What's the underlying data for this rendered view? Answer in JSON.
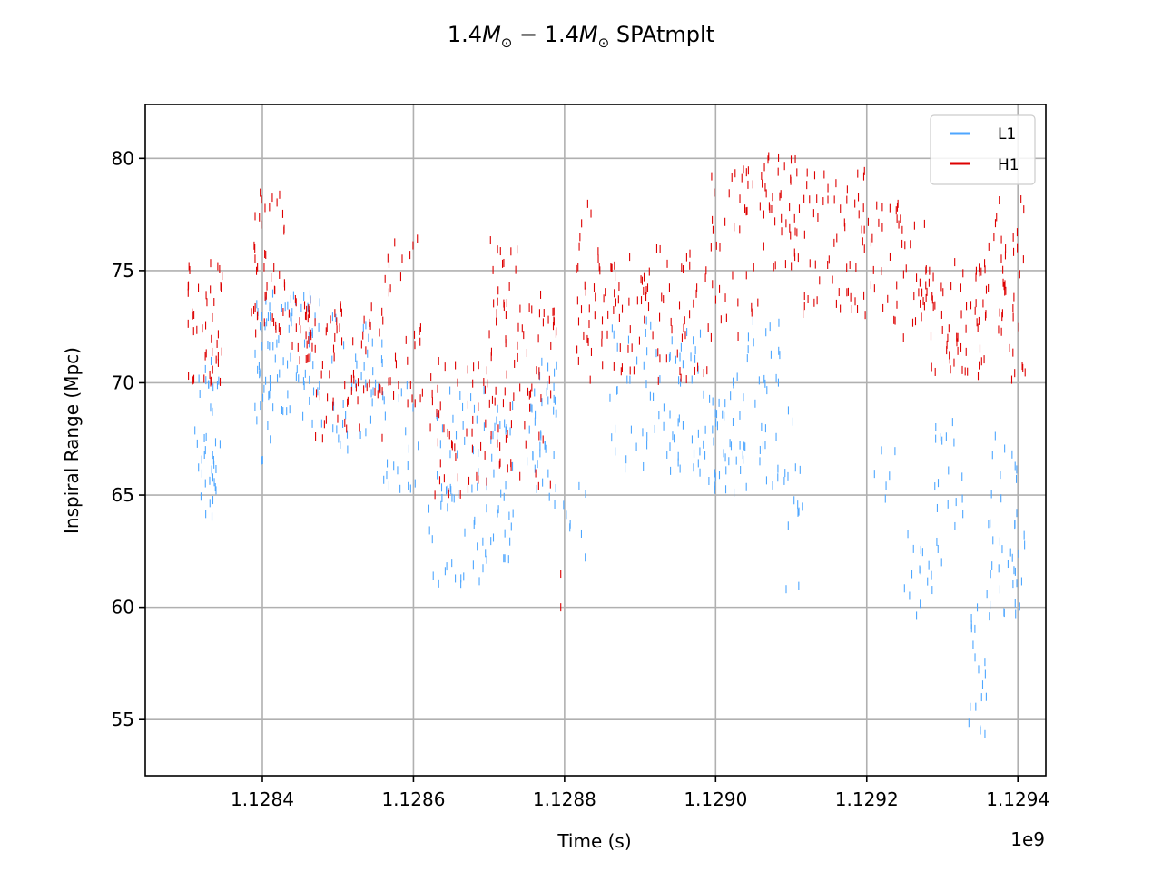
{
  "chart_data": {
    "type": "scatter",
    "title": {
      "prefix": "1.4",
      "m1_symbol": "M",
      "sub": "⊙",
      "dash": " − ",
      "mid": "1.4",
      "m2_symbol": "M",
      "suffix": " SPAtmplt"
    },
    "xlabel": "Time (s)",
    "ylabel": "Inspiral Range (Mpc)",
    "x_offset_label": "1e9",
    "x_scale": 1000000000,
    "xlim": [
      1128245000,
      1129437000
    ],
    "ylim": [
      52.5,
      82.4
    ],
    "x_ticks": [
      1128400000,
      1128600000,
      1128800000,
      1129000000,
      1129200000,
      1129400000
    ],
    "x_tick_labels": [
      "1.1284",
      "1.1286",
      "1.1288",
      "1.1290",
      "1.1292",
      "1.1294"
    ],
    "y_ticks": [
      55,
      60,
      65,
      70,
      75,
      80
    ],
    "y_tick_labels": [
      "55",
      "60",
      "65",
      "70",
      "75",
      "80"
    ],
    "grid": true,
    "legend_position": "top-right",
    "marker": "vertical tick",
    "series": [
      {
        "name": "L1",
        "color": "#4da6ff",
        "clusters": [
          {
            "x": [
              1128310000,
              1128345000
            ],
            "y": [
              64,
              71
            ],
            "n": 40
          },
          {
            "x": [
              1128390000,
              1128420000
            ],
            "y": [
              66.5,
              74
            ],
            "n": 40
          },
          {
            "x": [
              1128420000,
              1128480000
            ],
            "y": [
              68,
              74
            ],
            "n": 50
          },
          {
            "x": [
              1128490000,
              1128560000
            ],
            "y": [
              67,
              73
            ],
            "n": 40
          },
          {
            "x": [
              1128560000,
              1128610000
            ],
            "y": [
              65,
              70
            ],
            "n": 20
          },
          {
            "x": [
              1128620000,
              1128700000
            ],
            "y": [
              61,
              70
            ],
            "n": 60
          },
          {
            "x": [
              1128700000,
              1128735000
            ],
            "y": [
              62,
              69
            ],
            "n": 30
          },
          {
            "x": [
              1128750000,
              1128790000
            ],
            "y": [
              64.5,
              71
            ],
            "n": 40
          },
          {
            "x": [
              1128795000,
              1128830000
            ],
            "y": [
              62,
              66
            ],
            "n": 8
          },
          {
            "x": [
              1128860000,
              1128950000
            ],
            "y": [
              66,
              73
            ],
            "n": 45
          },
          {
            "x": [
              1128950000,
              1128990000
            ],
            "y": [
              66,
              73
            ],
            "n": 30
          },
          {
            "x": [
              1128990000,
              1129040000
            ],
            "y": [
              65,
              70.5
            ],
            "n": 40
          },
          {
            "x": [
              1129040000,
              1129085000
            ],
            "y": [
              65,
              73
            ],
            "n": 30
          },
          {
            "x": [
              1129090000,
              1129120000
            ],
            "y": [
              60.5,
              69
            ],
            "n": 15
          },
          {
            "x": [
              1129210000,
              1129240000
            ],
            "y": [
              64,
              67.5
            ],
            "n": 6
          },
          {
            "x": [
              1129245000,
              1129290000
            ],
            "y": [
              59.3,
              63.5
            ],
            "n": 15
          },
          {
            "x": [
              1129290000,
              1129330000
            ],
            "y": [
              62,
              68.5
            ],
            "n": 20
          },
          {
            "x": [
              1129330000,
              1129360000
            ],
            "y": [
              54,
              61
            ],
            "n": 20
          },
          {
            "x": [
              1129360000,
              1129400000
            ],
            "y": [
              59,
              68
            ],
            "n": 30
          },
          {
            "x": [
              1129390000,
              1129410000
            ],
            "y": [
              60,
              64
            ],
            "n": 10
          }
        ]
      },
      {
        "name": "H1",
        "color": "#dd0000",
        "clusters": [
          {
            "x": [
              1128300000,
              1128350000
            ],
            "y": [
              70,
              75.5
            ],
            "n": 45
          },
          {
            "x": [
              1128385000,
              1128430000
            ],
            "y": [
              72,
              78.5
            ],
            "n": 45
          },
          {
            "x": [
              1128430000,
              1128470000
            ],
            "y": [
              71,
              74
            ],
            "n": 30
          },
          {
            "x": [
              1128470000,
              1128560000
            ],
            "y": [
              67.5,
              74
            ],
            "n": 60
          },
          {
            "x": [
              1128560000,
              1128615000
            ],
            "y": [
              69,
              76.5
            ],
            "n": 30
          },
          {
            "x": [
              1128620000,
              1128700000
            ],
            "y": [
              65,
              71
            ],
            "n": 50
          },
          {
            "x": [
              1128700000,
              1128740000
            ],
            "y": [
              66,
              76.5
            ],
            "n": 50
          },
          {
            "x": [
              1128740000,
              1128790000
            ],
            "y": [
              65,
              74.5
            ],
            "n": 40
          },
          {
            "x": [
              1128815000,
              1128850000
            ],
            "y": [
              70,
              78
            ],
            "n": 30
          },
          {
            "x": [
              1128850000,
              1128990000
            ],
            "y": [
              70,
              76
            ],
            "n": 80
          },
          {
            "x": [
              1128990000,
              1129060000
            ],
            "y": [
              72,
              79.5
            ],
            "n": 40
          },
          {
            "x": [
              1129060000,
              1129110000
            ],
            "y": [
              75,
              80.3
            ],
            "n": 40
          },
          {
            "x": [
              1129110000,
              1129200000
            ],
            "y": [
              73,
              79.5
            ],
            "n": 60
          },
          {
            "x": [
              1129200000,
              1129280000
            ],
            "y": [
              72,
              78
            ],
            "n": 50
          },
          {
            "x": [
              1129280000,
              1129360000
            ],
            "y": [
              70,
              75.5
            ],
            "n": 60
          },
          {
            "x": [
              1129360000,
              1129410000
            ],
            "y": [
              70,
              78.5
            ],
            "n": 40
          }
        ],
        "outliers": [
          {
            "x": 1128795000,
            "y": 61.5
          },
          {
            "x": 1128795000,
            "y": 60
          }
        ]
      }
    ]
  }
}
